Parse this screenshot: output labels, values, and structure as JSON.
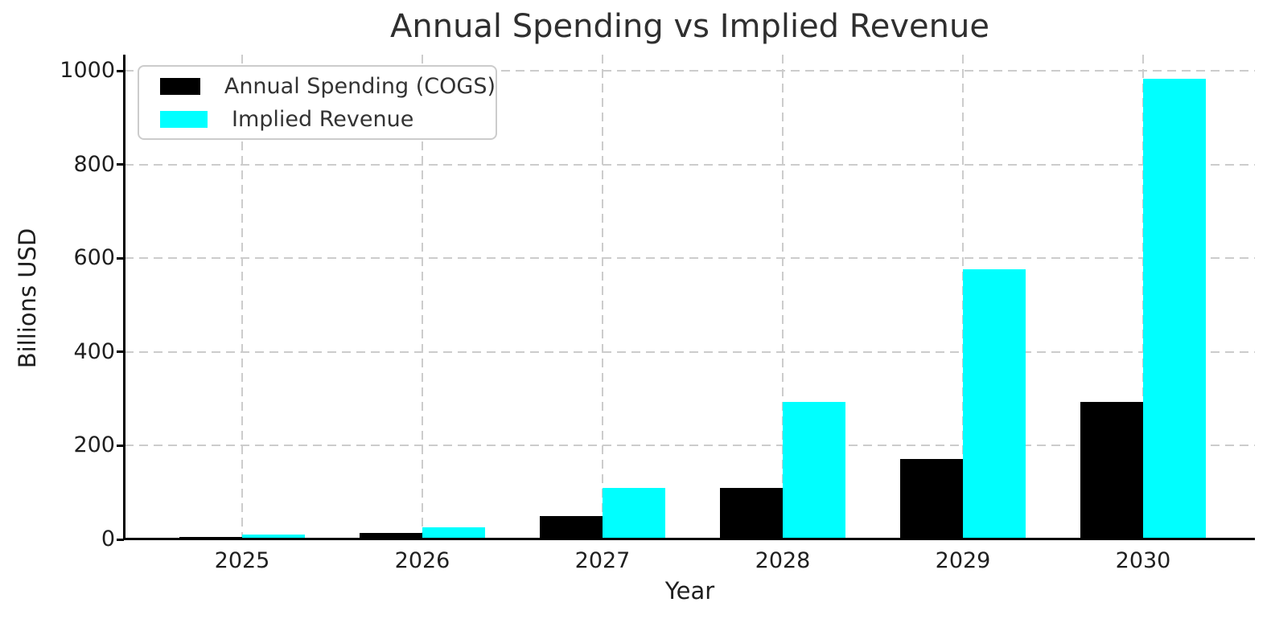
{
  "chart_data": {
    "type": "bar",
    "title": "Annual Spending vs Implied Revenue",
    "xlabel": "Year",
    "ylabel": "Billions USD",
    "categories": [
      "2025",
      "2026",
      "2027",
      "2028",
      "2029",
      "2030"
    ],
    "series": [
      {
        "name": "Annual Spending (COGS)",
        "color": "#000000",
        "values": [
          5,
          13,
          49,
          110,
          172,
          293
        ]
      },
      {
        "name": "Implied Revenue",
        "color": "#00ffff",
        "values": [
          10,
          26,
          110,
          293,
          577,
          983
        ]
      }
    ],
    "ylim": [
      0,
      1035
    ],
    "yticks": [
      0,
      200,
      400,
      600,
      800,
      1000
    ],
    "grid": true,
    "grid_style": "dashed",
    "grid_color": "#cccccc",
    "legend_position": "upper-left",
    "background_color": "#ffffff",
    "axis_color": "#000000",
    "text_color": "#1f1f1f"
  }
}
